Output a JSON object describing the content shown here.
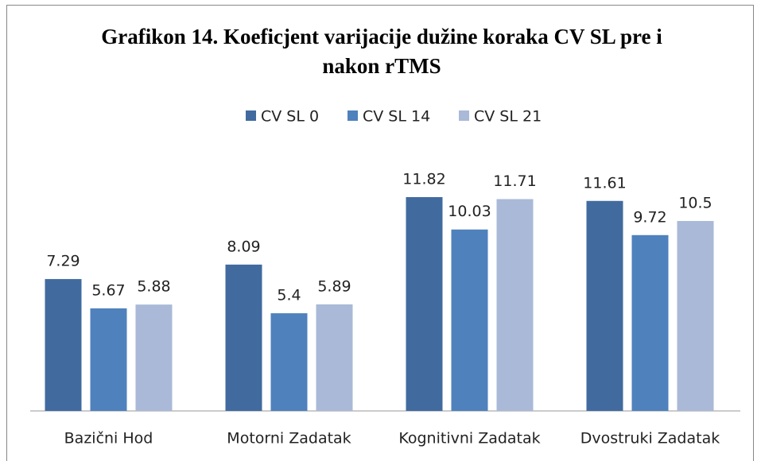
{
  "chart_data": {
    "type": "bar",
    "title": "Grafikon 14. Koeficjent varijacije dužine koraka CV SL pre i nakon rTMS",
    "categories": [
      "Bazični Hod",
      "Motorni Zadatak",
      "Kognitivni Zadatak",
      "Dvostruki Zadatak"
    ],
    "series": [
      {
        "name": "CV SL 0",
        "color": "#416b9f",
        "values": [
          7.29,
          8.09,
          11.82,
          11.61
        ]
      },
      {
        "name": "CV SL 14",
        "color": "#4f81bd",
        "values": [
          5.67,
          5.4,
          10.03,
          9.72
        ]
      },
      {
        "name": "CV SL 21",
        "color": "#a9b9d7",
        "values": [
          5.88,
          5.89,
          11.71,
          10.5
        ]
      }
    ],
    "legend": "top"
  }
}
